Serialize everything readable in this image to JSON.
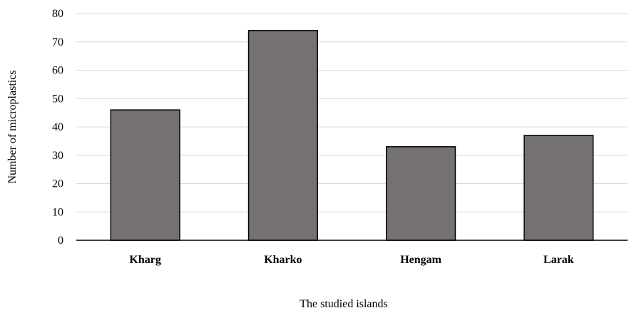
{
  "chart_data": {
    "type": "bar",
    "categories": [
      "Kharg",
      "Kharko",
      "Hengam",
      "Larak"
    ],
    "values": [
      46,
      74,
      33,
      37
    ],
    "title": "",
    "xlabel": "The studied islands",
    "ylabel": "Number of microplastics",
    "ylim": [
      0,
      80
    ],
    "yticks": [
      0,
      10,
      20,
      30,
      40,
      50,
      60,
      70,
      80
    ],
    "grid": true,
    "legend": "none",
    "colors": {
      "bar_fill": "#767171",
      "bar_stroke": "#000000",
      "grid": "#d9d9d9",
      "axis": "#000000"
    }
  }
}
